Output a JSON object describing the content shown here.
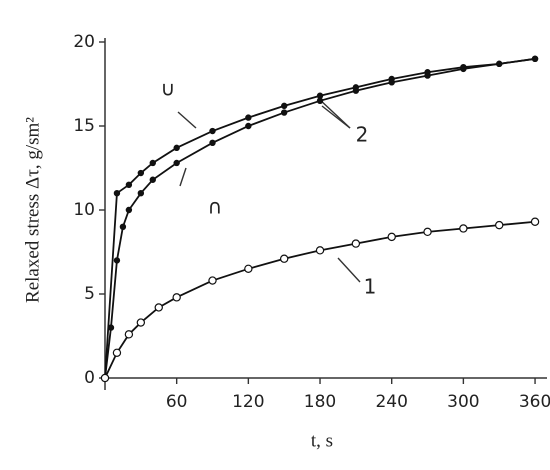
{
  "chart_data": {
    "type": "line",
    "ylabel": "Relaxed stress Δτ, g/sm²",
    "xlabel": "t, s",
    "xlim": [
      0,
      370
    ],
    "ylim": [
      0,
      20
    ],
    "xticks": [
      60,
      120,
      180,
      240,
      300,
      360
    ],
    "yticks": [
      0,
      5,
      10,
      15,
      20
    ],
    "annotations": [
      "∪",
      "∩",
      "2",
      "1"
    ],
    "series": [
      {
        "color": "#111111",
        "marker": "filled",
        "x": [
          0,
          10,
          20,
          30,
          40,
          60,
          90,
          120,
          150,
          180,
          210,
          240,
          270,
          300,
          330,
          360
        ],
        "values": [
          0,
          11,
          11.5,
          12.2,
          12.8,
          13.7,
          14.7,
          15.5,
          16.2,
          16.8,
          17.3,
          17.8,
          18.2,
          18.5,
          18.7,
          19
        ]
      },
      {
        "color": "#111111",
        "marker": "filled",
        "x": [
          0,
          5,
          10,
          15,
          20,
          30,
          40,
          60,
          90,
          120,
          150,
          180,
          210,
          240,
          270,
          300,
          330,
          360
        ],
        "values": [
          0,
          3,
          7,
          9,
          10,
          11,
          11.8,
          12.8,
          14,
          15,
          15.8,
          16.5,
          17.1,
          17.6,
          18,
          18.4,
          18.7,
          19
        ]
      },
      {
        "color": "#111111",
        "marker": "open",
        "x": [
          0,
          10,
          20,
          30,
          45,
          60,
          90,
          120,
          150,
          180,
          210,
          240,
          270,
          300,
          330,
          360
        ],
        "values": [
          0,
          1.5,
          2.6,
          3.3,
          4.2,
          4.8,
          5.8,
          6.5,
          7.1,
          7.6,
          8,
          8.4,
          8.7,
          8.9,
          9.1,
          9.3
        ]
      }
    ]
  }
}
